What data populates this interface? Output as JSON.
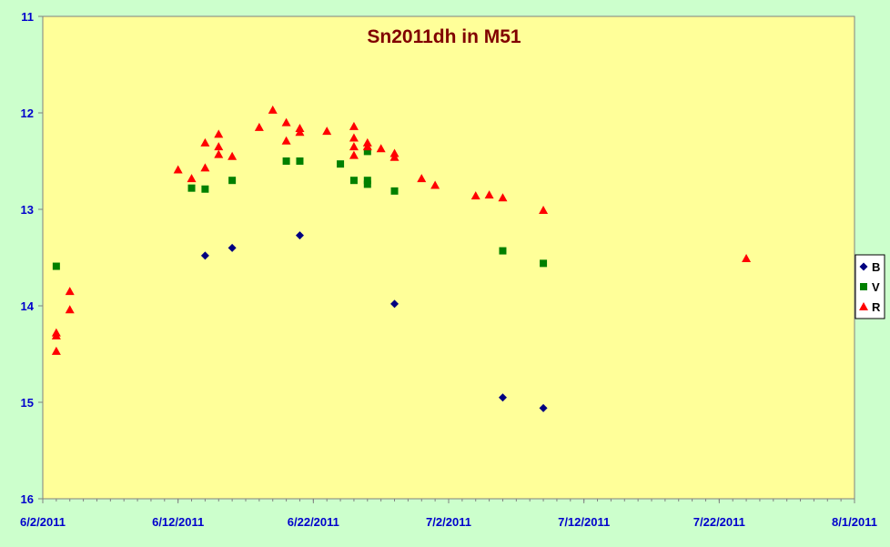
{
  "chart_data": {
    "type": "scatter",
    "title": "Sn2011dh in M51",
    "xlabel": "",
    "ylabel": "",
    "x_range": [
      "6/2/2011",
      "8/1/2011"
    ],
    "ylim": [
      11,
      16
    ],
    "y_inverted": true,
    "x_tick_labels": [
      "6/2/2011",
      "6/12/2011",
      "6/22/2011",
      "7/2/2011",
      "7/12/2011",
      "7/22/2011",
      "8/1/2011"
    ],
    "y_tick_labels": [
      "11",
      "12",
      "13",
      "14",
      "15",
      "16"
    ],
    "grid": false,
    "legend_position": "right",
    "colors": {
      "page_background": "#ccffcc",
      "plot_background": "#ffff99",
      "B": "#000080",
      "V": "#008000",
      "R": "#ff0000",
      "title": "#800000",
      "ticks": "#0000cc"
    },
    "series": [
      {
        "name": "B",
        "marker": "diamond",
        "points": [
          {
            "x": "6/14/2011",
            "y": 13.48
          },
          {
            "x": "6/16/2011",
            "y": 13.4
          },
          {
            "x": "6/21/2011",
            "y": 13.27
          },
          {
            "x": "6/28/2011",
            "y": 13.98
          },
          {
            "x": "7/6/2011",
            "y": 14.95
          },
          {
            "x": "7/9/2011",
            "y": 15.06
          }
        ]
      },
      {
        "name": "V",
        "marker": "square",
        "points": [
          {
            "x": "6/3/2011",
            "y": 13.59
          },
          {
            "x": "6/13/2011",
            "y": 12.78
          },
          {
            "x": "6/14/2011",
            "y": 12.79
          },
          {
            "x": "6/16/2011",
            "y": 12.7
          },
          {
            "x": "6/20/2011",
            "y": 12.5
          },
          {
            "x": "6/21/2011",
            "y": 12.5
          },
          {
            "x": "6/24/2011",
            "y": 12.53
          },
          {
            "x": "6/25/2011",
            "y": 12.7
          },
          {
            "x": "6/26/2011",
            "y": 12.7
          },
          {
            "x": "6/26/2011",
            "y": 12.74
          },
          {
            "x": "6/26/2011",
            "y": 12.4
          },
          {
            "x": "6/28/2011",
            "y": 12.81
          },
          {
            "x": "7/6/2011",
            "y": 13.43
          },
          {
            "x": "7/9/2011",
            "y": 13.56
          }
        ]
      },
      {
        "name": "R",
        "marker": "triangle",
        "points": [
          {
            "x": "6/3/2011",
            "y": 14.28
          },
          {
            "x": "6/3/2011",
            "y": 14.31
          },
          {
            "x": "6/3/2011",
            "y": 14.47
          },
          {
            "x": "6/4/2011",
            "y": 13.85
          },
          {
            "x": "6/4/2011",
            "y": 14.04
          },
          {
            "x": "6/12/2011",
            "y": 12.59
          },
          {
            "x": "6/13/2011",
            "y": 12.68
          },
          {
            "x": "6/14/2011",
            "y": 12.31
          },
          {
            "x": "6/14/2011",
            "y": 12.57
          },
          {
            "x": "6/15/2011",
            "y": 12.22
          },
          {
            "x": "6/15/2011",
            "y": 12.35
          },
          {
            "x": "6/15/2011",
            "y": 12.43
          },
          {
            "x": "6/16/2011",
            "y": 12.45
          },
          {
            "x": "6/18/2011",
            "y": 12.15
          },
          {
            "x": "6/19/2011",
            "y": 11.97
          },
          {
            "x": "6/20/2011",
            "y": 12.1
          },
          {
            "x": "6/20/2011",
            "y": 12.29
          },
          {
            "x": "6/21/2011",
            "y": 12.16
          },
          {
            "x": "6/21/2011",
            "y": 12.2
          },
          {
            "x": "6/23/2011",
            "y": 12.19
          },
          {
            "x": "6/25/2011",
            "y": 12.14
          },
          {
            "x": "6/25/2011",
            "y": 12.26
          },
          {
            "x": "6/25/2011",
            "y": 12.35
          },
          {
            "x": "6/25/2011",
            "y": 12.44
          },
          {
            "x": "6/26/2011",
            "y": 12.31
          },
          {
            "x": "6/26/2011",
            "y": 12.35
          },
          {
            "x": "6/27/2011",
            "y": 12.37
          },
          {
            "x": "6/28/2011",
            "y": 12.42
          },
          {
            "x": "6/28/2011",
            "y": 12.46
          },
          {
            "x": "6/30/2011",
            "y": 12.68
          },
          {
            "x": "7/1/2011",
            "y": 12.75
          },
          {
            "x": "7/4/2011",
            "y": 12.86
          },
          {
            "x": "7/5/2011",
            "y": 12.85
          },
          {
            "x": "7/6/2011",
            "y": 12.88
          },
          {
            "x": "7/9/2011",
            "y": 13.01
          },
          {
            "x": "7/24/2011",
            "y": 13.51
          }
        ]
      }
    ]
  }
}
